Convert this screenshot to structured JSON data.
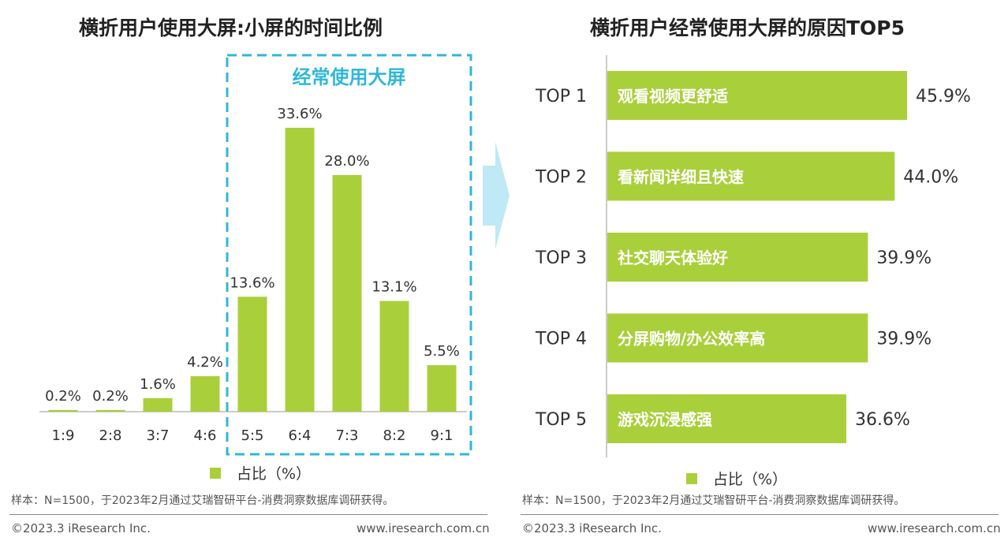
{
  "colors": {
    "bar": "#a9d03a",
    "highlight_box": "#2fb8d9",
    "arrow": "#bfe9f5",
    "text": "#333333"
  },
  "left": {
    "title": "横折用户使用大屏:小屏的时间比例",
    "highlight_label": "经常使用大屏",
    "legend": "占比（%）",
    "note": "样本：N=1500，于2023年2月通过艾瑞智研平台-消费洞察数据库调研获得。",
    "footer_left": "©2023.3 iResearch Inc.",
    "footer_right": "www.iresearch.com.cn"
  },
  "right": {
    "title": "横折用户经常使用大屏的原因TOP5",
    "legend": "占比（%）",
    "note": "样本：N=1500，于2023年2月通过艾瑞智研平台-消费洞察数据库调研获得。",
    "footer_left": "©2023.3 iResearch Inc.",
    "footer_right": "www.iresearch.com.cn"
  },
  "chart_data": [
    {
      "type": "bar",
      "title": "横折用户使用大屏:小屏的时间比例",
      "categories": [
        "1:9",
        "2:8",
        "3:7",
        "4:6",
        "5:5",
        "6:4",
        "7:3",
        "8:2",
        "9:1"
      ],
      "series": [
        {
          "name": "占比（%）",
          "values": [
            0.2,
            0.2,
            1.6,
            4.2,
            13.6,
            33.6,
            28.0,
            13.1,
            5.5
          ]
        }
      ],
      "value_labels": [
        "0.2%",
        "0.2%",
        "1.6%",
        "4.2%",
        "13.6%",
        "33.6%",
        "28.0%",
        "13.1%",
        "5.5%"
      ],
      "highlight": {
        "label": "经常使用大屏",
        "categories": [
          "5:5",
          "6:4",
          "7:3",
          "8:2",
          "9:1"
        ]
      },
      "legend": "bottom"
    },
    {
      "type": "bar",
      "orientation": "horizontal",
      "title": "横折用户经常使用大屏的原因TOP5",
      "categories": [
        "TOP 1",
        "TOP 2",
        "TOP 3",
        "TOP 4",
        "TOP 5"
      ],
      "bar_labels": [
        "观看视频更舒适",
        "看新闻详细且快速",
        "社交聊天体验好",
        "分屏购物/办公效率高",
        "游戏沉浸感强"
      ],
      "series": [
        {
          "name": "占比（%）",
          "values": [
            45.9,
            44.0,
            39.9,
            39.9,
            36.6
          ]
        }
      ],
      "value_labels": [
        "45.9%",
        "44.0%",
        "39.9%",
        "39.9%",
        "36.6%"
      ],
      "legend": "bottom"
    }
  ]
}
